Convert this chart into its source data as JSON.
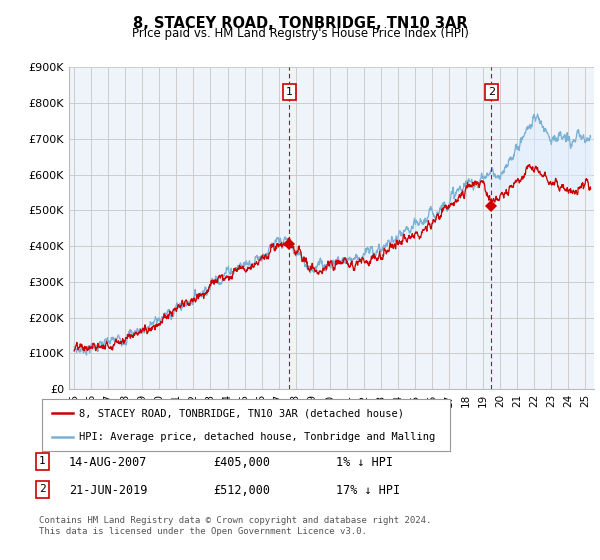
{
  "title": "8, STACEY ROAD, TONBRIDGE, TN10 3AR",
  "subtitle": "Price paid vs. HM Land Registry's House Price Index (HPI)",
  "ylabel_ticks": [
    "£0",
    "£100K",
    "£200K",
    "£300K",
    "£400K",
    "£500K",
    "£600K",
    "£700K",
    "£800K",
    "£900K"
  ],
  "ytick_values": [
    0,
    100000,
    200000,
    300000,
    400000,
    500000,
    600000,
    700000,
    800000,
    900000
  ],
  "ylim": [
    0,
    900000
  ],
  "xlim_start": 1994.7,
  "xlim_end": 2025.5,
  "sale1_x": 2007.62,
  "sale1_y": 405000,
  "sale2_x": 2019.47,
  "sale2_y": 512000,
  "legend_line1": "8, STACEY ROAD, TONBRIDGE, TN10 3AR (detached house)",
  "legend_line2": "HPI: Average price, detached house, Tonbridge and Malling",
  "footer": "Contains HM Land Registry data © Crown copyright and database right 2024.\nThis data is licensed under the Open Government Licence v3.0.",
  "line_color_red": "#cc0000",
  "line_color_blue": "#7ab0d4",
  "fill_color_blue": "#ddeeff",
  "chart_bg": "#eef4fa",
  "background_color": "#ffffff",
  "grid_color": "#cccccc",
  "dashed_line_color": "#cc0000",
  "hpi_breakpoints": [
    1995.0,
    1996.0,
    1997.0,
    1998.0,
    1999.0,
    2000.0,
    2001.0,
    2002.0,
    2003.0,
    2004.0,
    2005.0,
    2006.0,
    2007.0,
    2007.5,
    2008.0,
    2009.0,
    2010.0,
    2011.0,
    2012.0,
    2013.0,
    2014.0,
    2015.0,
    2016.0,
    2017.0,
    2018.0,
    2019.0,
    2019.5,
    2020.0,
    2021.0,
    2022.0,
    2022.5,
    2023.0,
    2024.0,
    2025.0,
    2025.3
  ],
  "hpi_values": [
    110000,
    118000,
    128000,
    148000,
    168000,
    195000,
    225000,
    255000,
    295000,
    330000,
    350000,
    375000,
    405000,
    415000,
    380000,
    340000,
    355000,
    365000,
    375000,
    395000,
    420000,
    450000,
    490000,
    530000,
    570000,
    590000,
    610000,
    580000,
    680000,
    760000,
    740000,
    710000,
    690000,
    700000,
    695000
  ],
  "red_breakpoints": [
    1995.0,
    1996.0,
    1997.0,
    1998.0,
    1999.0,
    2000.0,
    2001.0,
    2002.0,
    2003.0,
    2004.0,
    2005.0,
    2006.0,
    2007.0,
    2007.62,
    2008.5,
    2009.0,
    2010.0,
    2011.0,
    2012.0,
    2013.0,
    2014.0,
    2015.0,
    2016.0,
    2017.0,
    2018.0,
    2019.0,
    2019.47,
    2020.0,
    2021.0,
    2022.0,
    2022.5,
    2023.0,
    2024.0,
    2025.0,
    2025.3
  ],
  "red_values": [
    110000,
    115000,
    125000,
    145000,
    163000,
    190000,
    218000,
    248000,
    288000,
    322000,
    342000,
    368000,
    400000,
    405000,
    360000,
    328000,
    340000,
    350000,
    360000,
    380000,
    405000,
    435000,
    470000,
    510000,
    555000,
    575000,
    512000,
    530000,
    590000,
    620000,
    600000,
    565000,
    560000,
    570000,
    565000
  ]
}
